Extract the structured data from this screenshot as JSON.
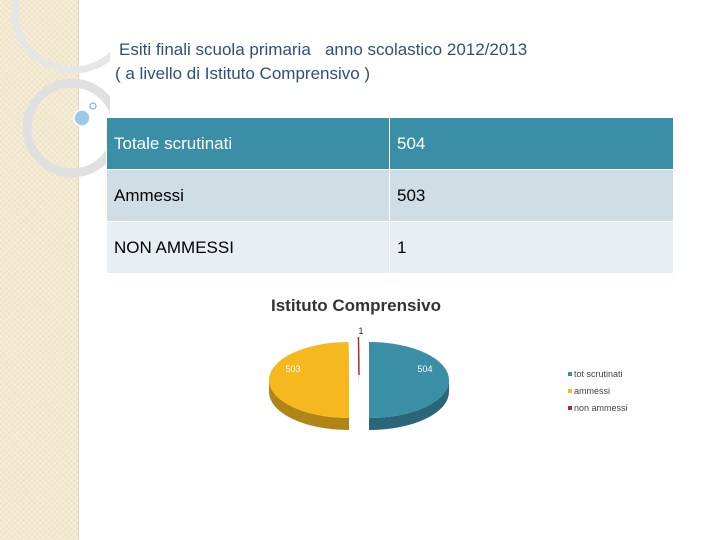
{
  "header": {
    "title_line1": "Esiti finali scuola primaria   anno scolastico 2012/2013",
    "title_line2": "( a livello di Istituto Comprensivo )"
  },
  "table": {
    "rows": [
      {
        "label": "Totale scrutinati",
        "value": "504"
      },
      {
        "label": "Ammessi",
        "value": "503"
      },
      {
        "label": "NON AMMESSI",
        "value": "1"
      }
    ]
  },
  "chart_data": {
    "type": "pie",
    "title": "Istituto Comprensivo",
    "slices": [
      {
        "label": "tot scrutinati",
        "value": 504,
        "color": "#3a8ea6"
      },
      {
        "label": "ammessi",
        "value": 503,
        "color": "#f6b81f"
      },
      {
        "label": "non ammessi",
        "value": 1,
        "color": "#b22a22"
      }
    ],
    "data_labels": [
      "504",
      "503",
      "1"
    ],
    "legend_position": "right",
    "style": "3d-exploded"
  }
}
